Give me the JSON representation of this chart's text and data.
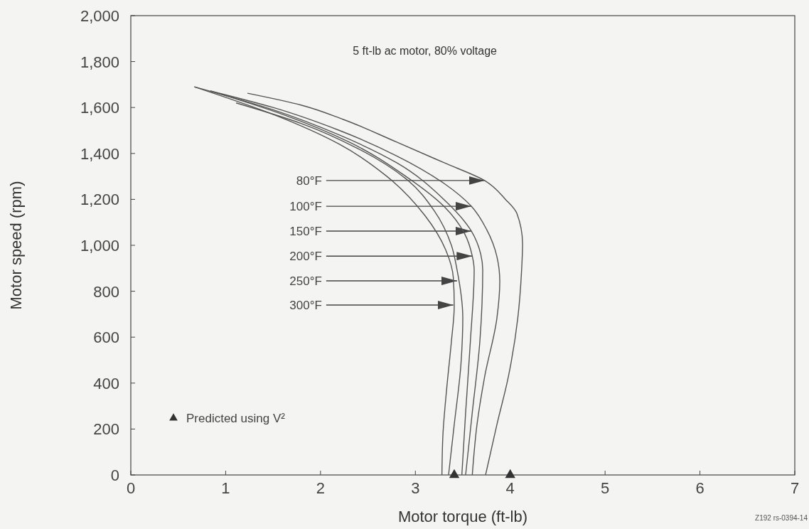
{
  "chart_data": {
    "type": "line",
    "title": "5 ft-lb ac motor, 80% voltage",
    "xlabel": "Motor torque (ft-lb)",
    "ylabel": "Motor speed (rpm)",
    "xlim": [
      0,
      7
    ],
    "xticks": [
      0,
      1,
      2,
      3,
      4,
      5,
      6,
      7
    ],
    "ylim": [
      0,
      2000
    ],
    "yticks": [
      0,
      200,
      400,
      600,
      800,
      {
        "value": 1000,
        "label": "1,000"
      },
      {
        "value": 1200,
        "label": "1,200"
      },
      {
        "value": 1400,
        "label": "1,400"
      },
      {
        "value": 1600,
        "label": "1,600"
      },
      {
        "value": 1800,
        "label": "1,800"
      },
      {
        "value": 2000,
        "label": "2,000"
      }
    ],
    "grid": false,
    "legend": "bottom left",
    "line_style": "solid",
    "series": [
      {
        "color": "#555555",
        "x": [
          1.23,
          1.8,
          2.24,
          2.8,
          3.3,
          3.73,
          3.95,
          4.07,
          4.13,
          4.12,
          4.08,
          3.98,
          3.86,
          3.74
        ],
        "values": [
          1662,
          1610,
          1548,
          1450,
          1360,
          1282,
          1200,
          1139,
          1006,
          892,
          684,
          427,
          220,
          0
        ]
      },
      {
        "color": "#555555",
        "x": [
          0.84,
          1.5,
          2.2,
          2.8,
          3.3,
          3.59,
          3.75,
          3.86,
          3.89,
          3.86,
          3.73,
          3.65,
          3.6
        ],
        "values": [
          1672,
          1600,
          1500,
          1390,
          1270,
          1170,
          1070,
          950,
          842,
          684,
          427,
          220,
          0
        ]
      },
      {
        "color": "#555555",
        "x": [
          0.67,
          1.5,
          2.2,
          2.8,
          3.3,
          3.59,
          3.69,
          3.71,
          3.68,
          3.6,
          3.53
        ],
        "values": [
          1690,
          1590,
          1480,
          1360,
          1200,
          1062,
          960,
          892,
          582,
          272,
          0
        ]
      },
      {
        "color": "#555555",
        "x": [
          0.84,
          1.6,
          2.3,
          2.9,
          3.3,
          3.52,
          3.6,
          3.62,
          3.58,
          3.53,
          3.49
        ],
        "values": [
          1672,
          1570,
          1450,
          1300,
          1170,
          1050,
          953,
          892,
          582,
          272,
          0
        ]
      },
      {
        "color": "#555555",
        "x": [
          1.11,
          1.8,
          2.4,
          2.9,
          3.2,
          3.38,
          3.44,
          3.5,
          3.48,
          3.41,
          3.35
        ],
        "values": [
          1620,
          1530,
          1420,
          1290,
          1150,
          1000,
          892,
          684,
          480,
          220,
          0
        ]
      },
      {
        "color": "#555555",
        "x": [
          0.67,
          1.5,
          2.2,
          2.7,
          3.1,
          3.32,
          3.4,
          3.41,
          3.38,
          3.33,
          3.29,
          3.28
        ],
        "values": [
          1690,
          1570,
          1440,
          1300,
          1130,
          980,
          860,
          737,
          582,
          375,
          170,
          0
        ]
      },
      {
        "type": "scatter",
        "name": "Predicted using V²",
        "color": "#333333",
        "marker": "triangle",
        "x": [
          3.41,
          4.0
        ],
        "values": [
          0,
          0
        ]
      }
    ],
    "annotations": [
      {
        "text": "80°F",
        "x": 3.73,
        "y": 1282
      },
      {
        "text": "100°F",
        "x": 3.59,
        "y": 1170
      },
      {
        "text": "150°F",
        "x": 3.59,
        "y": 1062
      },
      {
        "text": "200°F",
        "x": 3.6,
        "y": 953
      },
      {
        "text": "250°F",
        "x": 3.44,
        "y": 845
      },
      {
        "text": "300°F",
        "x": 3.4,
        "y": 740
      },
      "Z192 rs-0394-14"
    ]
  }
}
